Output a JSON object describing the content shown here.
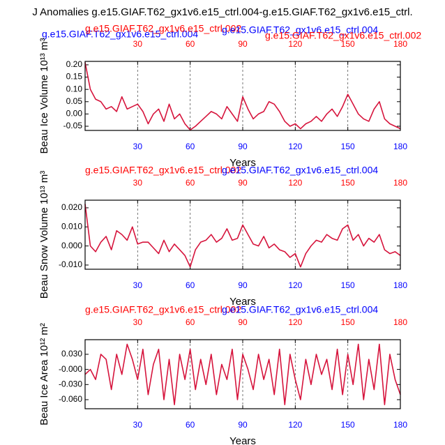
{
  "chart_data": [
    {
      "type": "line",
      "title": "J Anomalies g.e15.GIAF.T62_gx1v6.e15_ctrl.004-g.e15.GIAF.T62_gx1v6.e15_ctrl.",
      "strings": [
        {
          "text": "g.e15.GIAF.T62_gx1v6.e15_ctrl.004",
          "color": "#0000ff"
        },
        {
          "text": "g.e15.GIAF.T62_gx1v6.e15_ctrl.002",
          "color": "#ff0000"
        },
        {
          "text": "g.e15.GIAF.T62_gx1v6.e15_ctrl.004",
          "color": "#0000ff"
        },
        {
          "text": "g.e15.GIAF.T62_gx1v6.e15_ctrl.002",
          "color": "#ff0000"
        }
      ],
      "ylabel": "Beau Ice Volume 10¹³ m³",
      "xlabel": "Years",
      "xlim": [
        0,
        180
      ],
      "xticks": [
        30,
        60,
        90,
        120,
        150,
        180
      ],
      "top_tick_color": "#ff0000",
      "bottom_tick_color": "#0000ff",
      "ylim": [
        -0.067,
        0.214
      ],
      "yticks": [
        {
          "value": 0.2,
          "label": "0.20"
        },
        {
          "value": 0.15,
          "label": "0.15"
        },
        {
          "value": 0.1,
          "label": "0.10"
        },
        {
          "value": 0.05,
          "label": "0.05"
        },
        {
          "value": 0,
          "label": "0.00"
        },
        {
          "value": -0.05,
          "label": "-0.05"
        }
      ],
      "x": [
        0,
        3,
        6,
        9,
        12,
        15,
        18,
        21,
        24,
        27,
        30,
        33,
        36,
        39,
        42,
        45,
        48,
        51,
        54,
        57,
        60,
        63,
        66,
        69,
        72,
        75,
        78,
        81,
        84,
        87,
        90,
        93,
        96,
        99,
        102,
        105,
        108,
        111,
        114,
        117,
        120,
        123,
        126,
        129,
        132,
        135,
        138,
        141,
        144,
        147,
        150,
        153,
        156,
        159,
        162,
        165,
        168,
        171,
        174,
        177,
        180
      ],
      "series": [
        {
          "color": "#d6143c",
          "values": [
            0.21,
            0.1,
            0.06,
            0.05,
            0.02,
            0.03,
            0.01,
            0.07,
            0.02,
            0.03,
            0.04,
            0.01,
            -0.04,
            0.0,
            0.02,
            -0.03,
            0.04,
            -0.02,
            0.0,
            -0.04,
            -0.065,
            -0.05,
            -0.03,
            -0.01,
            0.01,
            0.0,
            -0.02,
            0.03,
            0.0,
            -0.03,
            0.07,
            0.02,
            -0.02,
            0.0,
            0.01,
            0.05,
            0.04,
            0.01,
            -0.03,
            -0.05,
            -0.04,
            -0.06,
            -0.04,
            -0.03,
            -0.01,
            -0.03,
            0.0,
            0.02,
            -0.01,
            0.03,
            0.08,
            0.04,
            0.0,
            -0.02,
            -0.03,
            0.02,
            0.05,
            -0.02,
            -0.04,
            -0.05,
            -0.06
          ]
        }
      ]
    },
    {
      "type": "line",
      "strings": [
        {
          "text": "g.e15.GIAF.T62_gx1v6.e15_ctrl.002",
          "color": "#ff0000"
        },
        {
          "text": "g.e15.GIAF.T62_gx1v6.e15_ctrl.004",
          "color": "#0000ff"
        }
      ],
      "ylabel": "Beau Snow Volume 10¹³ m³",
      "xlabel": "Years",
      "xlim": [
        0,
        180
      ],
      "xticks": [
        30,
        60,
        90,
        120,
        150,
        180
      ],
      "top_tick_color": "#ff0000",
      "bottom_tick_color": "#0000ff",
      "ylim": [
        -0.0122,
        0.024
      ],
      "yticks": [
        {
          "value": 0.02,
          "label": "0.020"
        },
        {
          "value": 0.01,
          "label": "0.010"
        },
        {
          "value": 0,
          "label": "0.000"
        },
        {
          "value": -0.01,
          "label": "-0.010"
        }
      ],
      "x": [
        0,
        3,
        6,
        9,
        12,
        15,
        18,
        21,
        24,
        27,
        30,
        33,
        36,
        39,
        42,
        45,
        48,
        51,
        54,
        57,
        60,
        63,
        66,
        69,
        72,
        75,
        78,
        81,
        84,
        87,
        90,
        93,
        96,
        99,
        102,
        105,
        108,
        111,
        114,
        117,
        120,
        123,
        126,
        129,
        132,
        135,
        138,
        141,
        144,
        147,
        150,
        153,
        156,
        159,
        162,
        165,
        168,
        171,
        174,
        177,
        180
      ],
      "series": [
        {
          "color": "#d6143c",
          "values": [
            0.022,
            0.0,
            -0.003,
            0.002,
            0.005,
            -0.002,
            0.008,
            0.006,
            0.003,
            0.01,
            0.001,
            0.002,
            0.002,
            -0.001,
            -0.004,
            0.003,
            -0.003,
            0.001,
            -0.002,
            -0.005,
            -0.011,
            -0.002,
            0.002,
            0.003,
            0.006,
            0.002,
            0.004,
            0.009,
            0.003,
            0.004,
            0.011,
            0.006,
            0.001,
            0.0,
            0.005,
            -0.001,
            0.001,
            -0.002,
            -0.003,
            -0.006,
            -0.004,
            -0.011,
            -0.004,
            0.0,
            0.003,
            0.002,
            0.006,
            0.004,
            0.003,
            0.009,
            0.011,
            0.003,
            0.006,
            0.0,
            0.004,
            0.002,
            0.006,
            -0.002,
            -0.004,
            -0.003,
            -0.005
          ]
        }
      ]
    },
    {
      "type": "line",
      "strings": [
        {
          "text": "g.e15.GIAF.T62_gx1v6.e15_ctrl.002",
          "color": "#ff0000"
        },
        {
          "text": "g.e15.GIAF.T62_gx1v6.e15_ctrl.004",
          "color": "#0000ff"
        }
      ],
      "ylabel": "Beau Ice Area 10¹² m²",
      "xlabel": "Years",
      "xlim": [
        0,
        180
      ],
      "xticks": [
        30,
        60,
        90,
        120,
        150,
        180
      ],
      "top_tick_color": "#ff0000",
      "bottom_tick_color": "#0000ff",
      "ylim": [
        -0.078,
        0.059
      ],
      "yticks": [
        {
          "value": 0.03,
          "label": "0.030"
        },
        {
          "value": 0,
          "label": "-0.000"
        },
        {
          "value": -0.03,
          "label": "-0.030"
        },
        {
          "value": -0.06,
          "label": "-0.060"
        }
      ],
      "x": [
        0,
        3,
        6,
        9,
        12,
        15,
        18,
        21,
        24,
        27,
        30,
        33,
        36,
        39,
        42,
        45,
        48,
        51,
        54,
        57,
        60,
        63,
        66,
        69,
        72,
        75,
        78,
        81,
        84,
        87,
        90,
        93,
        96,
        99,
        102,
        105,
        108,
        111,
        114,
        117,
        120,
        123,
        126,
        129,
        132,
        135,
        138,
        141,
        144,
        147,
        150,
        153,
        156,
        159,
        162,
        165,
        168,
        171,
        174,
        177,
        180
      ],
      "series": [
        {
          "color": "#d6143c",
          "values": [
            -0.01,
            0.0,
            -0.02,
            0.03,
            0.02,
            -0.04,
            0.03,
            -0.01,
            0.05,
            0.02,
            -0.02,
            0.04,
            -0.05,
            0.01,
            0.04,
            -0.06,
            0.02,
            -0.07,
            0.03,
            -0.02,
            0.04,
            -0.04,
            0.02,
            -0.03,
            0.03,
            -0.05,
            0.01,
            -0.02,
            0.04,
            -0.06,
            0.03,
            0.0,
            -0.04,
            0.03,
            -0.02,
            0.02,
            -0.05,
            0.04,
            -0.07,
            0.03,
            -0.02,
            -0.06,
            0.02,
            -0.03,
            0.03,
            -0.01,
            0.02,
            -0.04,
            0.04,
            -0.05,
            0.03,
            -0.03,
            0.05,
            -0.06,
            0.02,
            -0.04,
            0.05,
            -0.07,
            0.03,
            -0.02,
            -0.05
          ]
        }
      ]
    }
  ]
}
